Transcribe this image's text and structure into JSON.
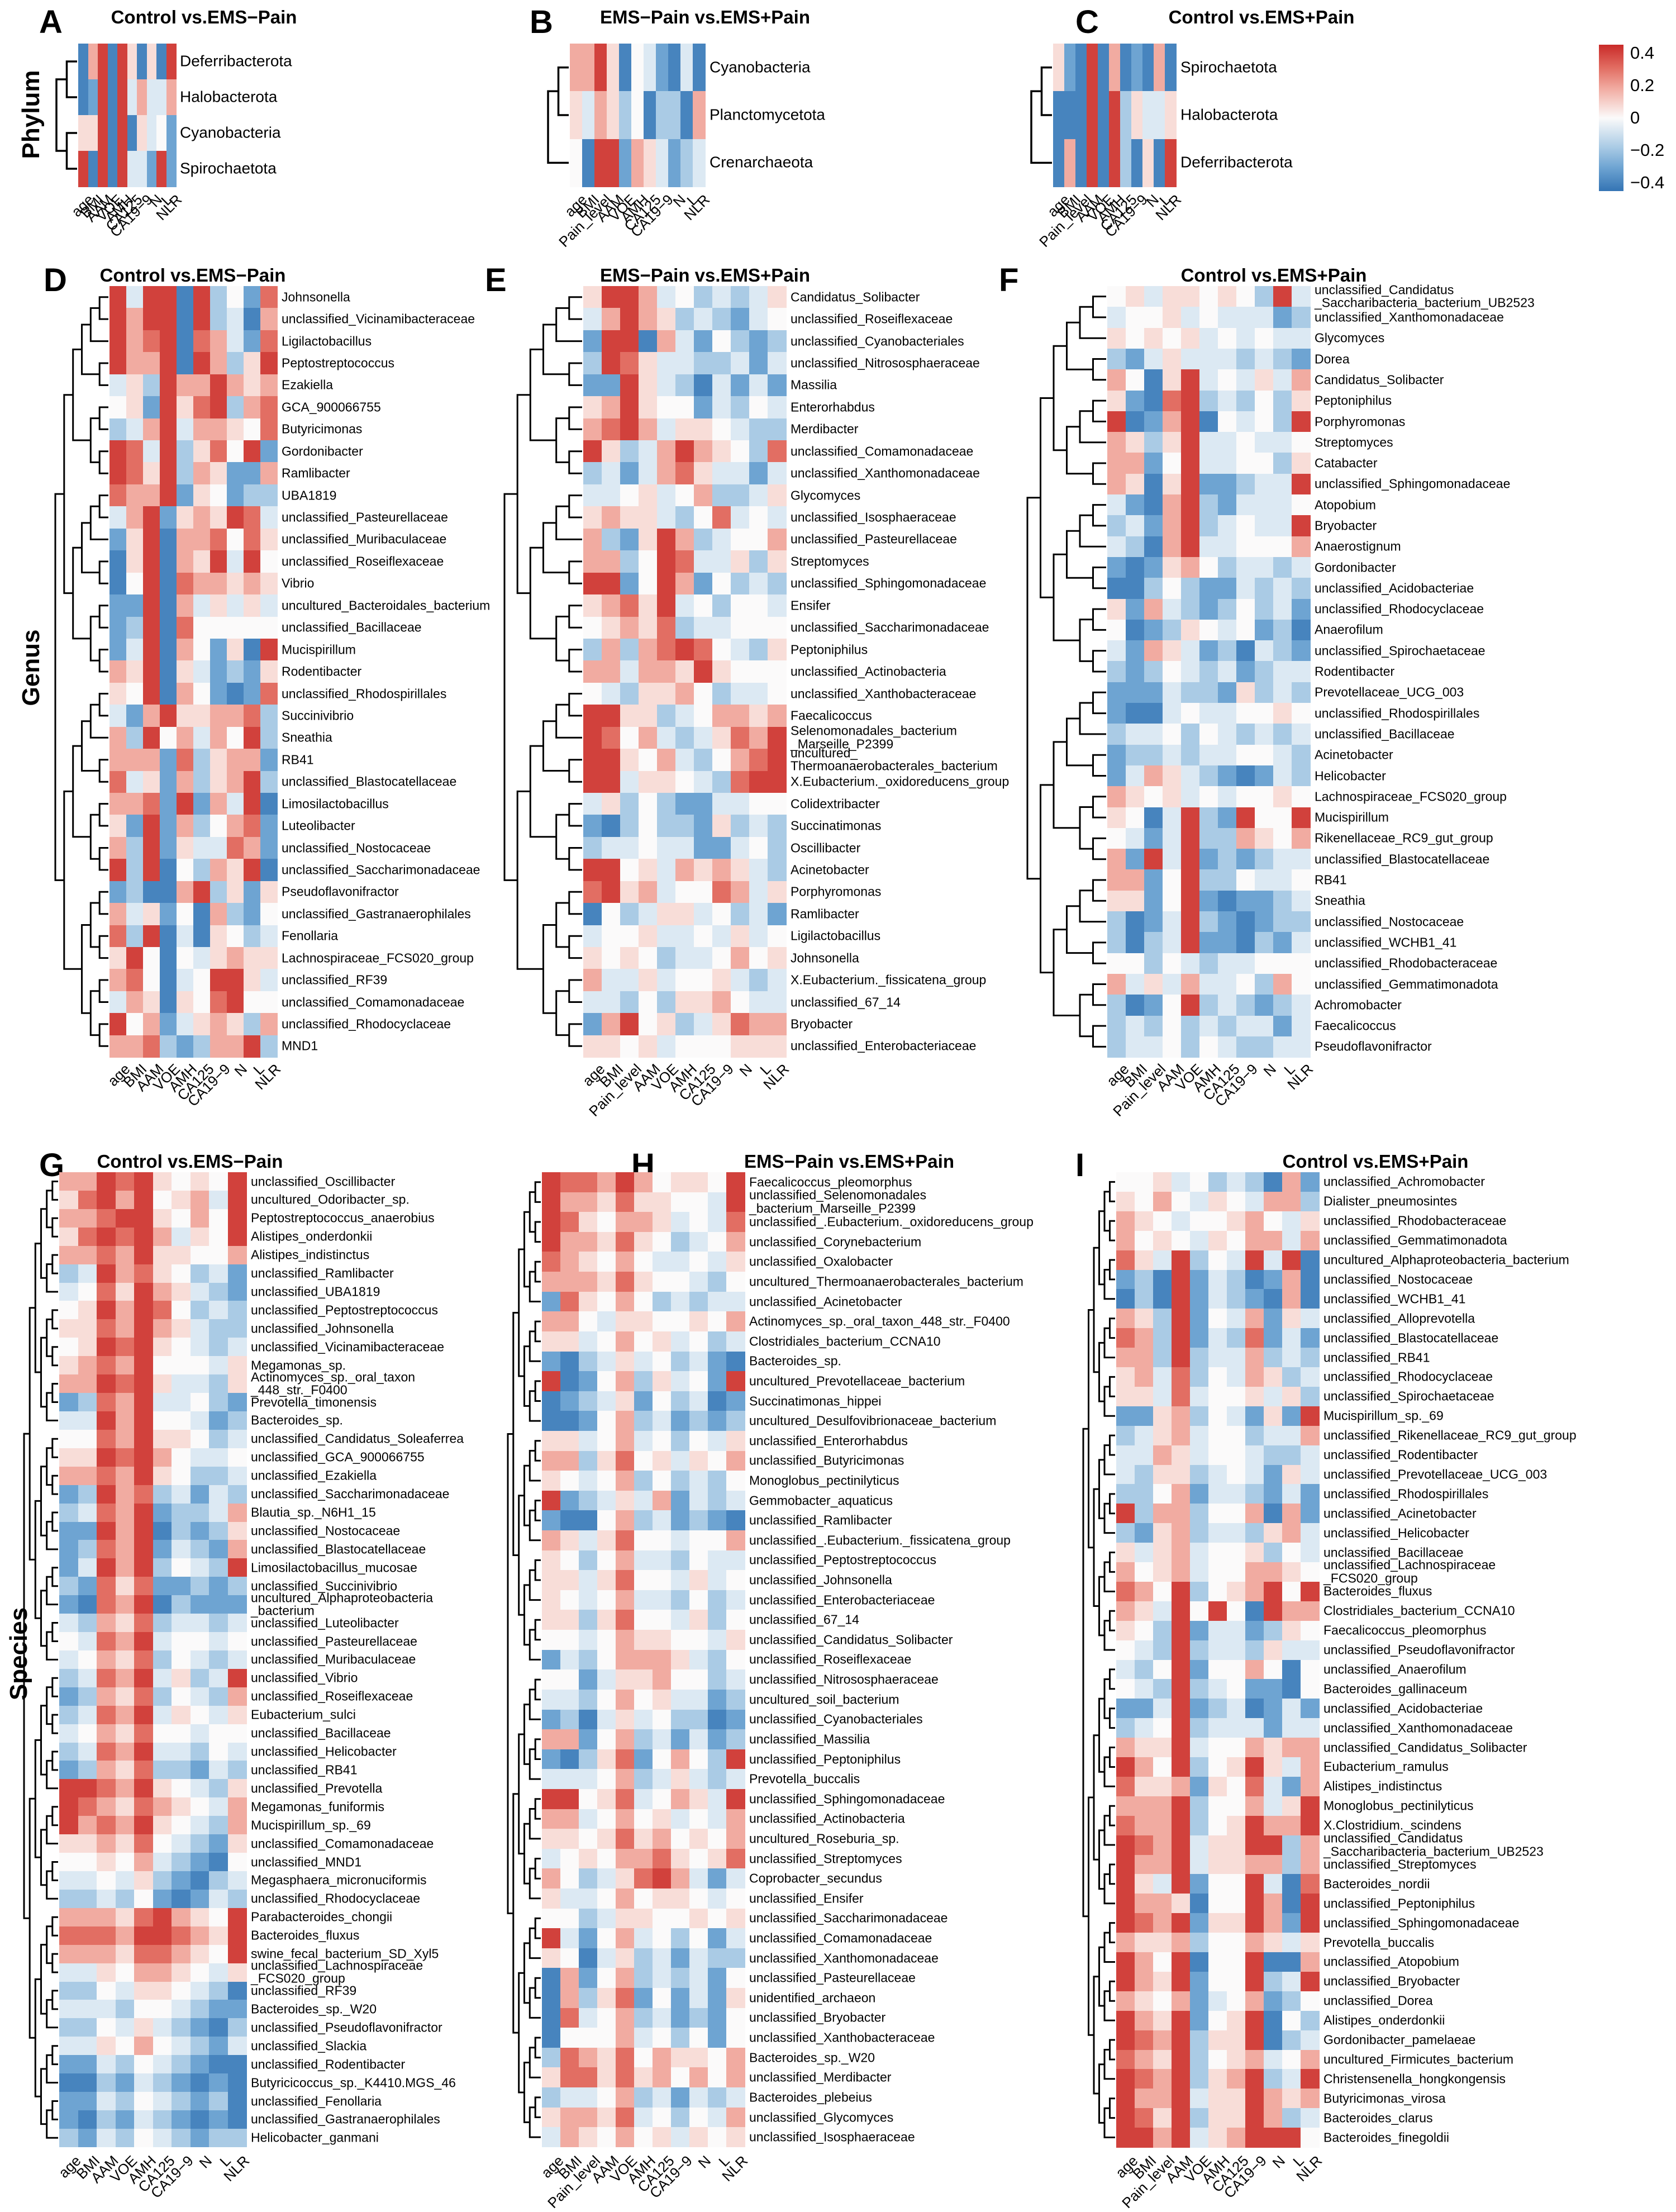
{
  "figure": {
    "phylum_label": "Phylum",
    "genus_label": "Genus",
    "species_label": "Species"
  },
  "legend": {
    "ticks": [
      "0.4",
      "0.2",
      "0",
      "−0.2",
      "−0.4"
    ],
    "max": 0.45,
    "min": -0.45
  },
  "cell_encoding": "each character digit 0-8 maps to correlation value (digit-4)/10, i.e. 0=-0.4 (blue) .. 4=0 (white) .. 8=+0.4 (red)",
  "chart_data": [
    {
      "id": "A",
      "letter": "A",
      "type": "heatmap",
      "taxon_level": "Phylum",
      "title": "Control vs.EMS−Pain",
      "columns": [
        "age",
        "BMI",
        "AAM",
        "VOE",
        "AMH",
        "CA125",
        "CA19−9",
        "N",
        "L",
        "NLR"
      ],
      "rows": [
        "Deferribacterota",
        "Halobacterota",
        "Cyanobacteria",
        "Spirochaetota"
      ],
      "cells": [
        "0680850508",
        "0180836336",
        "5580805341",
        "8080833181"
      ]
    },
    {
      "id": "B",
      "letter": "B",
      "type": "heatmap",
      "taxon_level": "Phylum",
      "title": "EMS−Pain vs.EMS+Pain",
      "columns": [
        "age",
        "BMI",
        "Pain_level",
        "AAM",
        "VOE",
        "AMH",
        "CA125",
        "CA19−9",
        "N",
        "L",
        "NLR"
      ],
      "rows": [
        "Cyanobacteria",
        "Planctomycetota",
        "Crenarchaeota"
      ],
      "cells": [
        "66850431030",
        "53652402206",
        "40881653123"
      ]
    },
    {
      "id": "C",
      "letter": "C",
      "type": "heatmap",
      "taxon_level": "Phylum",
      "title": "Control vs.EMS+Pain",
      "columns": [
        "age",
        "BMI",
        "Pain_level",
        "AAM",
        "VOE",
        "AMH",
        "CA125",
        "CA19−9",
        "N",
        "L",
        "NLR"
      ],
      "rows": [
        "Spirochaetota",
        "Halobacterota",
        "Deferribacterota"
      ],
      "cells": [
        "51080601060",
        "00080825335",
        "06080820508"
      ]
    },
    {
      "id": "D",
      "letter": "D",
      "type": "heatmap",
      "taxon_level": "Genus",
      "title": "Control vs.EMS−Pain",
      "columns": [
        "age",
        "BMI",
        "AAM",
        "VOE",
        "AMH",
        "CA125",
        "CA19−9",
        "N",
        "L",
        "NLR"
      ],
      "rows": [
        "Johnsonella",
        "unclassified_Vicinamibacteraceae",
        "Ligilactobacillus",
        "Peptostreptococcus",
        "Ezakiella",
        "GCA_900066755",
        "Butyricimonas",
        "Gordonibacter",
        "Ramlibacter",
        "UBA1819",
        "unclassified_Pasteurellaceae",
        "unclassified_Muribaculaceae",
        "unclassified_Roseiflexaceae",
        "Vibrio",
        "uncultured_Bacteroidales_bacterium",
        "unclassified_Bacillaceae",
        "Mucispirillum",
        "Rodentibacter",
        "unclassified_Rhodospirillales",
        "Succinivibrio",
        "Sneathia",
        "RB41",
        "unclassified_Blastocatellaceae",
        "Limosilactobacillus",
        "Luteolibacter",
        "unclassified_Nostocaceae",
        "unclassified_Saccharimonadaceae",
        "Pseudoflavonifractor",
        "unclassified_Gastranaerophilales",
        "Fenollaria",
        "Lachnospiraceae_FCS020_group",
        "unclassified_RF39",
        "unclassified_Comamonadaceae",
        "unclassified_Rhodocyclaceae",
        "MND1"
      ],
      "cells": [
        "8388082417",
        "8688082306",
        "8678076317",
        "8668086258",
        "3528668656",
        "4518578267",
        "2368366547",
        "8738257481",
        "8758265116",
        "7668154122",
        "3681565873",
        "1580667475",
        "0580658384",
        "0480766565",
        "1180635353",
        "1280744444",
        "1380641508",
        "6580531215",
        "5480641017",
        "3168556672",
        "6284636482",
        "6661725661",
        "7351625682",
        "6671816380",
        "5181624671",
        "6281533761",
        "8280426580",
        "1200682515",
        "6351406214",
        "7280305423",
        "5840435655",
        "6740348853",
        "3650547844",
        "8461356526",
        "6672126682"
      ]
    },
    {
      "id": "E",
      "letter": "E",
      "type": "heatmap",
      "taxon_level": "Genus",
      "title": "EMS−Pain vs.EMS+Pain",
      "columns": [
        "age",
        "BMI",
        "Pain_level",
        "AAM",
        "VOE",
        "AMH",
        "CA125",
        "CA19−9",
        "N",
        "L",
        "NLR"
      ],
      "rows": [
        "Candidatus_Solibacter",
        "unclassified_Roseiflexaceae",
        "unclassified_Cyanobacteriales",
        "unclassified_Nitrososphaeraceae",
        "Massilia",
        "Enterorhabdus",
        "Merdibacter",
        "unclassified_Comamonadaceae",
        "unclassified_Xanthomonadaceae",
        "Glycomyces",
        "unclassified_Isosphaeraceae",
        "unclassified_Pasteurellaceae",
        "Streptomyces",
        "unclassified_Sphingomonadaceae",
        "Ensifer",
        "unclassified_Saccharimonadaceae",
        "Peptoniphilus",
        "unclassified_Actinobacteria",
        "unclassified_Xanthobacteraceae",
        "Faecalicoccus",
        "Selenomonadales_bacterium\n_Marseille_P2399",
        "uncultured_\nThermoanaerobacterales_bacterium",
        "X.Eubacterium._oxidoreducens_group",
        "Colidextribacter",
        "Succinatimonas",
        "Oscillibacter",
        "Acinetobacter",
        "Porphyromonas",
        "Ramlibacter",
        "Ligilactobacillus",
        "Johnsonella",
        "X.Eubacterium._fissicatena_group",
        "unclassified_67_14",
        "Bryobacter",
        "unclassified_Enterobacteriaceae"
      ],
      "cells": [
        "58863423235",
        "36865232134",
        "18806314212",
        "28753322313",
        "11853203131",
        "56854413243",
        "67863554322",
        "85236865427",
        "23136753313",
        "33453462235",
        "56553247343",
        "62158623446",
        "66248733525",
        "88148614232",
        "56758342443",
        "45657233444",
        "26267874325",
        "66366585444",
        "43255642334",
        "88552346656",
        "87463235768",
        "88546324678",
        "88355432788",
        "35242113344",
        "10242215232",
        "23343311342",
        "88453656532",
        "78563447635",
        "04235534231",
        "34453343534",
        "54542334645",
        "63353445323",
        "33242556433",
        "16845235766",
        "55453444555"
      ]
    },
    {
      "id": "F",
      "letter": "F",
      "type": "heatmap",
      "taxon_level": "Genus",
      "title": "Control vs.EMS+Pain",
      "columns": [
        "age",
        "BMI",
        "Pain_level",
        "AAM",
        "VOE",
        "AMH",
        "CA125",
        "CA19−9",
        "N",
        "L",
        "NLR"
      ],
      "rows": [
        "unclassified_Candidatus\n_Saccharibacteria_bacterium_UB2523",
        "unclassified_Xanthomonadaceae",
        "Glycomyces",
        "Dorea",
        "Candidatus_Solibacter",
        "Peptoniphilus",
        "Porphyromonas",
        "Streptomyces",
        "Catabacter",
        "unclassified_Sphingomonadaceae",
        "Atopobium",
        "Bryobacter",
        "Anaerostignum",
        "Gordonibacter",
        "unclassified_Acidobacteriae",
        "unclassified_Rhodocyclaceae",
        "Anaerofilum",
        "unclassified_Spirochaetaceae",
        "Rodentibacter",
        "Prevotellaceae_UCG_003",
        "unclassified_Rhodospirillales",
        "unclassified_Bacillaceae",
        "Acinetobacter",
        "Helicobacter",
        "Lachnospiraceae_FCS020_group",
        "Mucispirillum",
        "Rikenellaceae_RC9_gut_group",
        "unclassified_Blastocatellaceae",
        "RB41",
        "Sneathia",
        "unclassified_Nostocaceae",
        "unclassified_WCHB1_41",
        "unclassified_Rhodobacteraceae",
        "unclassified_Gemmatimonadota",
        "Achromobacter",
        "Faecalicoccus",
        "Pseudoflavonifractor"
      ],
      "cells": [
        "45355454283",
        "34453433312",
        "54545343433",
        "21353332321",
        "64058343536",
        "51078232425",
        "80168043428",
        "65258334334",
        "66148334425",
        "65058112338",
        "31068213334",
        "23168234338",
        "32068334446",
        "10156423323",
        "00242113232",
        "51632124231",
        "40125434120",
        "31653120321",
        "21243231233",
        "11132215232",
        "10034334454",
        "23342432323",
        "12232334432",
        "13653210132",
        "65453434454",
        "54038218448",
        "43138226546",
        "61838121233",
        "66148224334",
        "55148101123",
        "20138210122",
        "20238110213",
        "44243233444",
        "63536334264",
        "20148232123",
        "23242323313",
        "23342432233"
      ]
    },
    {
      "id": "G",
      "letter": "G",
      "type": "heatmap",
      "taxon_level": "Species",
      "title": "Control vs.EMS−Pain",
      "columns": [
        "age",
        "BMI",
        "AAM",
        "VOE",
        "AMH",
        "CA125",
        "CA19−9",
        "N",
        "L",
        "NLR"
      ],
      "rows": [
        "unclassified_Oscillibacter",
        "uncultured_Odoribacter_sp.",
        "Peptostreptococcus_anaerobius",
        "Alistipes_onderdonkii",
        "Alistipes_indistinctus",
        "unclassified_Ramlibacter",
        "unclassified_UBA1819",
        "unclassified_Peptostreptococcus",
        "unclassified_Johnsonella",
        "unclassified_Vicinamibacteraceae",
        "Megamonas_sp.",
        "Actinomyces_sp._oral_taxon\n_448_str._F0400",
        "Prevotella_timonensis",
        "Bacteroides_sp.",
        "unclassified_Candidatus_Soleaferrea",
        "unclassified_GCA_900066755",
        "unclassified_Ezakiella",
        "unclassified_Saccharimonadaceae",
        "Blautia_sp._N6H1_15",
        "unclassified_Nostocaceae",
        "unclassified_Blastocatellaceae",
        "Limosilactobacillus_mucosae",
        "unclassified_Succinivibrio",
        "uncultured_Alphaproteobacteria\n_bacterium",
        "unclassified_Luteolibacter",
        "unclassified_Pasteurellaceae",
        "unclassified_Muribaculaceae",
        "unclassified_Vibrio",
        "unclassified_Roseiflexaceae",
        "Eubacterium_sulci",
        "unclassified_Bacillaceae",
        "unclassified_Helicobacter",
        "unclassified_RB41",
        "unclassified_Prevotella",
        "Megamonas_funiformis",
        "Mucispirillum_sp._69",
        "unclassified_Comamonadaceae",
        "unclassified_MND1",
        "Megasphaera_micronuciformis",
        "unclassified_Rhodocyclaceae",
        "Parabacteroides_chongii",
        "Bacteroides_fluxus",
        "swine_fecal_bacterium_SD_Xyl5",
        "unclassified_Lachnospiraceae\n_FCS020_group",
        "unclassified_RF39",
        "Bacteroides_sp._W20",
        "unclassified_Pseudoflavonifractor",
        "unclassified_Slackia",
        "unclassified_Rodentibacter",
        "Butyricicoccus_sp._K4410.MGS_46",
        "unclassified_Fenollaria",
        "unclassified_Gastranaerophilales",
        "Helicobacter_ganmani"
      ],
      "cells": [
        "6687854548",
        "5786845638",
        "6678854648",
        "5787863548",
        "6676855446",
        "2386754231",
        "3475865321",
        "4586874232",
        "5576865322",
        "4587854323",
        "5676844435",
        "6687853325",
        "1276833421",
        "3386844312",
        "4476855423",
        "5587864334",
        "6676854223",
        "1286723132",
        "2376812236",
        "1186802125",
        "1276813216",
        "1386824328",
        "2175711212",
        "1076802111",
        "3265723323",
        "4376834434",
        "3465724323",
        "2376835238",
        "1265724326",
        "2376835435",
        "3465744344",
        "2376833243",
        "1265722132",
        "8876854325",
        "8765765436",
        "8676854326",
        "5565743215",
        "4454632104",
        "3343521023",
        "2232410132",
        "6665786548",
        "7776887658",
        "6665776548",
        "3354665435",
        "2243554320",
        "3332443211",
        "2243532102",
        "3354643213",
        "1132432100",
        "0021321010",
        "1132432120",
        "1021321010",
        "2132432122"
      ]
    },
    {
      "id": "H",
      "letter": "H",
      "type": "heatmap",
      "taxon_level": "Species",
      "title": "EMS−Pain vs.EMS+Pain",
      "columns": [
        "age",
        "BMI",
        "Pain_level",
        "AAM",
        "VOE",
        "AMH",
        "CA125",
        "CA19−9",
        "N",
        "L",
        "NLR"
      ],
      "rows": [
        "Faecalicoccus_pleomorphus",
        "unclassified_Selenomonadales\n_bacterium_Marseille_P2399",
        "unclassified_.Eubacterium._oxidoreducens_group",
        "unclassified_Corynebacterium",
        "unclassified_Oxalobacter",
        "uncultured_Thermoanaerobacterales_bacterium",
        "unclassified_Acinetobacter",
        "Actinomyces_sp._oral_taxon_448_str._F0400",
        "Clostridiales_bacterium_CCNA10",
        "Bacteroides_sp.",
        "uncultured_Prevotellaceae_bacterium",
        "Succinatimonas_hippei",
        "uncultured_Desulfovibrionaceae_bacterium",
        "unclassified_Enterorhabdus",
        "unclassified_Butyricimonas",
        "Monoglobus_pectinilyticus",
        "Gemmobacter_aquaticus",
        "unclassified_Ramlibacter",
        "unclassified_.Eubacterium._fissicatena_group",
        "unclassified_Peptostreptococcus",
        "unclassified_Johnsonella",
        "unclassified_Enterobacteriaceae",
        "unclassified_67_14",
        "unclassified_Candidatus_Solibacter",
        "unclassified_Roseiflexaceae",
        "unclassified_Nitrososphaeraceae",
        "uncultured_soil_bacterium",
        "unclassified_Cyanobacteriales",
        "unclassified_Massilia",
        "unclassified_Peptoniphilus",
        "Prevotella_buccalis",
        "unclassified_Sphingomonadaceae",
        "unclassified_Actinobacteria",
        "uncultured_Roseburia_sp.",
        "unclassified_Streptomyces",
        "Coprobacter_secundus",
        "unclassified_Ensifer",
        "unclassified_Saccharimonadaceae",
        "unclassified_Comamonadaceae",
        "unclassified_Xanthomonadaceae",
        "unclassified_Pasteurellaceae",
        "unidentified_archaeon",
        "unclassified_Bryobacter",
        "unclassified_Xanthobacteraceae",
        "Bacteroides_sp._W20",
        "unclassified_Merdibacter",
        "Bacteroides_plebeius",
        "unclassified_Glycomyces",
        "unclassified_Isosphaeraceae"
      ],
      "cells": [
        "87768645548",
        "86657554438",
        "87546653437",
        "86657542346",
        "76546433435",
        "66657544324",
        "17546423233",
        "66435544546",
        "55346453423",
        "10235342310",
        "80146253418",
        "01235142301",
        "00146231212",
        "55346342435",
        "66257453546",
        "54346242324",
        "81235361323",
        "10046231210",
        "65357443446",
        "54246332433",
        "55357443534",
        "54346332423",
        "55257443524",
        "44346554435",
        "13246665324",
        "44135564423",
        "33246453312",
        "12035342201",
        "66146231312",
        "10257146428",
        "33346235323",
        "88457346538",
        "66346453436",
        "55457564546",
        "34546675457",
        "64235786313",
        "53346455434",
        "44235544545",
        "83146342413",
        "54035231322",
        "06146232314",
        "06257141315",
        "07346231214",
        "04446342414",
        "27657465546",
        "57757564646",
        "23346231323",
        "56657342436",
        "36546453545"
      ]
    },
    {
      "id": "I",
      "letter": "I",
      "type": "heatmap",
      "taxon_level": "Species",
      "title": "Control vs.EMS+Pain",
      "columns": [
        "age",
        "BMI",
        "Pain_level",
        "AAM",
        "VOE",
        "AMH",
        "CA125",
        "CA19−9",
        "N",
        "L",
        "NLR"
      ],
      "rows": [
        "unclassified_Achromobacter",
        "Dialister_pneumosintes",
        "unclassified_Rhodobacteraceae",
        "unclassified_Gemmatimonadota",
        "uncultured_Alphaproteobacteria_bacterium",
        "unclassified_Nostocaceae",
        "unclassified_WCHB1_41",
        "unclassified_Alloprevotella",
        "unclassified_Blastocatellaceae",
        "unclassified_RB41",
        "unclassified_Rhodocyclaceae",
        "unclassified_Spirochaetaceae",
        "Mucispirillum_sp._69",
        "unclassified_Rikenellaceae_RC9_gut_group",
        "unclassified_Rodentibacter",
        "unclassified_Prevotellaceae_UCG_003",
        "unclassified_Rhodospirillales",
        "unclassified_Acinetobacter",
        "unclassified_Helicobacter",
        "unclassified_Bacillaceae",
        "unclassified_Lachnospiraceae\n_FCS020_group",
        "Bacteroides_fluxus",
        "Clostridiales_bacterium_CCNA10",
        "Faecalicoccus_pleomorphus",
        "unclassified_Pseudoflavonifractor",
        "unclassified_Anaerofilum",
        "Bacteroides_gallinaceum",
        "unclassified_Acidobacteriae",
        "unclassified_Xanthomonadaceae",
        "unclassified_Candidatus_Solibacter",
        "Eubacterium_ramulus",
        "Alistipes_indistinctus",
        "Monoglobus_pectinilyticus",
        "X.Clostridium._scindens",
        "unclassified_Candidatus\n_Saccharibacteria_bacterium_UB2523",
        "unclassified_Streptomyces",
        "Bacteroides_nordii",
        "unclassified_Peptoniphilus",
        "unclassified_Sphingomonadaceae",
        "Prevotella_buccalis",
        "unclassified_Atopobium",
        "unclassified_Bryobacter",
        "unclassified_Dorea",
        "Alistipes_onderdonkii",
        "Gordonibacter_pamelaeae",
        "uncultured_Firmicutes_bacterium",
        "Christensenella_hongkongensis",
        "Butyricimonas_virosa",
        "Bacteroides_clarus",
        "Bacteroides_finegoldii"
      ],
      "cells": [
        "44534232061",
        "54643543662",
        "65434456435",
        "64543546636",
        "75382438380",
        "12081320160",
        "02081321060",
        "65281436153",
        "76281327131",
        "66282336232",
        "56372436523",
        "55373445352",
        "11562431518",
        "23563442336",
        "33653443223",
        "32552343153",
        "22461332131",
        "82662446061",
        "21562332563",
        "53563445243",
        "64563446654",
        "76482456848",
        "65384840866",
        "54281331254",
        "43282332533",
        "32481446404",
        "43282341104",
        "11381230131",
        "23482333133",
        "65583446566",
        "86482458536",
        "75561547316",
        "66682446358",
        "76682458668",
        "87683558826",
        "86683556626",
        "85381448307",
        "86650448608",
        "87681558618",
        "65562446535",
        "86480448006",
        "86581448238",
        "65461346124",
        "86581458042",
        "87682558023",
        "76582456346",
        "87682568238",
        "86683558656",
        "87582558623",
        "88683568884"
      ]
    }
  ]
}
